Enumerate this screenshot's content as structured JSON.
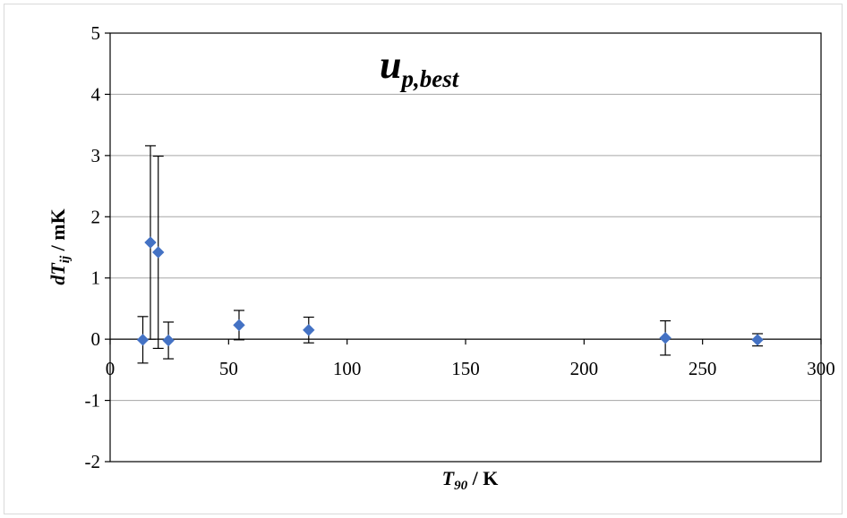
{
  "chart_data": {
    "type": "scatter",
    "title": {
      "main": "u",
      "sub": "p,best"
    },
    "xlabel": {
      "var": "T",
      "sub": "90",
      "unit": " / K"
    },
    "ylabel": {
      "var": "dT",
      "sub": "ij",
      "unit": " / mK"
    },
    "xlim": [
      0,
      300
    ],
    "ylim": [
      -2,
      5
    ],
    "x_ticks": [
      "0",
      "50",
      "100",
      "150",
      "200",
      "250",
      "300"
    ],
    "y_ticks": [
      "-2",
      "-1",
      "0",
      "1",
      "2",
      "3",
      "4",
      "5"
    ],
    "grid": "horizontal",
    "marker_color": "#4472c4",
    "points": [
      {
        "x": 13.8,
        "y": -0.01,
        "err": 0.38
      },
      {
        "x": 17.0,
        "y": 1.58,
        "err": 1.58
      },
      {
        "x": 20.3,
        "y": 1.42,
        "err": 1.57
      },
      {
        "x": 24.6,
        "y": -0.02,
        "err": 0.3
      },
      {
        "x": 54.4,
        "y": 0.23,
        "err": 0.24
      },
      {
        "x": 83.8,
        "y": 0.15,
        "err": 0.21
      },
      {
        "x": 234.3,
        "y": 0.02,
        "err": 0.28
      },
      {
        "x": 273.2,
        "y": -0.01,
        "err": 0.1
      }
    ]
  }
}
